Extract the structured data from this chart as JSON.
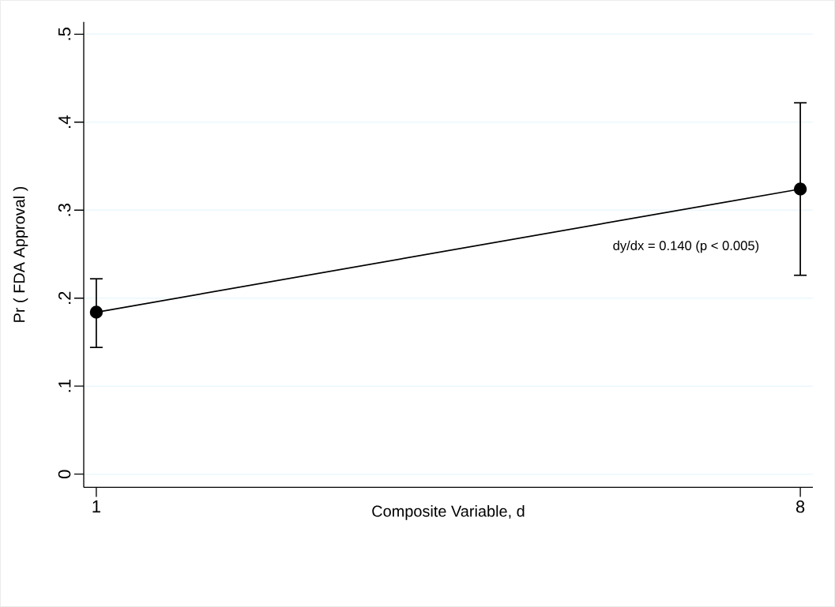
{
  "chart_data": {
    "type": "line",
    "xlabel": "Composite Variable, d",
    "ylabel": "Pr ( FDA Approval )",
    "x": [
      1,
      8
    ],
    "series": [
      {
        "color": "#000000",
        "values": [
          0.184,
          0.324
        ],
        "errors": [
          [
            0.144,
            0.222
          ],
          [
            0.226,
            0.422
          ]
        ]
      }
    ],
    "xlim": [
      0.875,
      8.125
    ],
    "xticks": [
      1,
      8
    ],
    "ylim": [
      -0.015,
      0.514
    ],
    "yticks": [
      {
        "value": 0,
        "label": "0"
      },
      {
        "value": 0.1,
        "label": ".1"
      },
      {
        "value": 0.2,
        "label": ".2"
      },
      {
        "value": 0.3,
        "label": ".3"
      },
      {
        "value": 0.4,
        "label": ".4"
      },
      {
        "value": 0.5,
        "label": ".5"
      }
    ],
    "grid": "y",
    "marker": "circle",
    "line_style": "solid",
    "annotations": [
      "dy/dx = 0.140 (p < 0.005)"
    ]
  }
}
